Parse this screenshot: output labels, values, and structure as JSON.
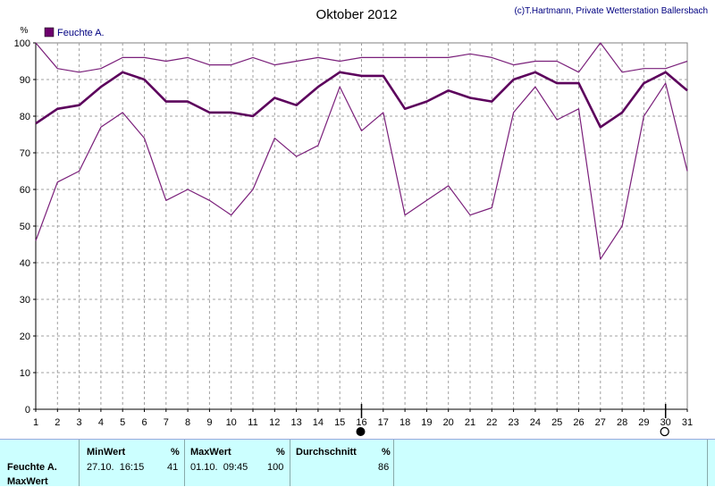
{
  "chart_data": {
    "type": "line",
    "title": "Oktober 2012",
    "credit": "(c)T.Hartmann, Private Wetterstation Ballersbach",
    "ylabel": "%",
    "ylim": [
      0,
      100
    ],
    "yticks": [
      0,
      10,
      20,
      30,
      40,
      50,
      60,
      70,
      80,
      90,
      100
    ],
    "x": [
      1,
      2,
      3,
      4,
      5,
      6,
      7,
      8,
      9,
      10,
      11,
      12,
      13,
      14,
      15,
      16,
      17,
      18,
      19,
      20,
      21,
      22,
      23,
      24,
      25,
      26,
      27,
      28,
      29,
      30,
      31
    ],
    "legend": {
      "label": "Feuchte A.",
      "color": "#6d006d",
      "position": "top-left"
    },
    "grid": true,
    "series": [
      {
        "name": "Feuchte A.",
        "role": "avg",
        "values": [
          78,
          82,
          83,
          88,
          92,
          90,
          84,
          84,
          81,
          81,
          80,
          85,
          83,
          88,
          92,
          91,
          91,
          82,
          84,
          87,
          85,
          84,
          90,
          92,
          89,
          89,
          77,
          81,
          89,
          92,
          87
        ]
      },
      {
        "role": "max",
        "values": [
          100,
          93,
          92,
          93,
          96,
          96,
          95,
          96,
          94,
          94,
          96,
          94,
          95,
          96,
          95,
          96,
          96,
          96,
          96,
          96,
          97,
          96,
          94,
          95,
          95,
          92,
          100,
          92,
          93,
          93,
          95
        ]
      },
      {
        "role": "min",
        "values": [
          46,
          62,
          65,
          77,
          81,
          74,
          57,
          60,
          57,
          53,
          60,
          74,
          69,
          72,
          88,
          76,
          81,
          53,
          57,
          61,
          53,
          55,
          81,
          88,
          79,
          82,
          41,
          50,
          80,
          89,
          65
        ]
      }
    ],
    "markers": [
      {
        "day": 16,
        "type": "full-moon-dark"
      },
      {
        "day": 30,
        "type": "new-moon-open"
      }
    ]
  },
  "stats": {
    "row_labels": [
      "Feuchte A.",
      "MaxWert"
    ],
    "min_header": "MinWert",
    "max_header": "MaxWert",
    "avg_header": "Durchschnitt",
    "unit": "%",
    "min_time": "27.10.  16:15",
    "min_value": "41",
    "max_time": "01.10.  09:45",
    "max_value": "100",
    "avg_value": "86"
  }
}
